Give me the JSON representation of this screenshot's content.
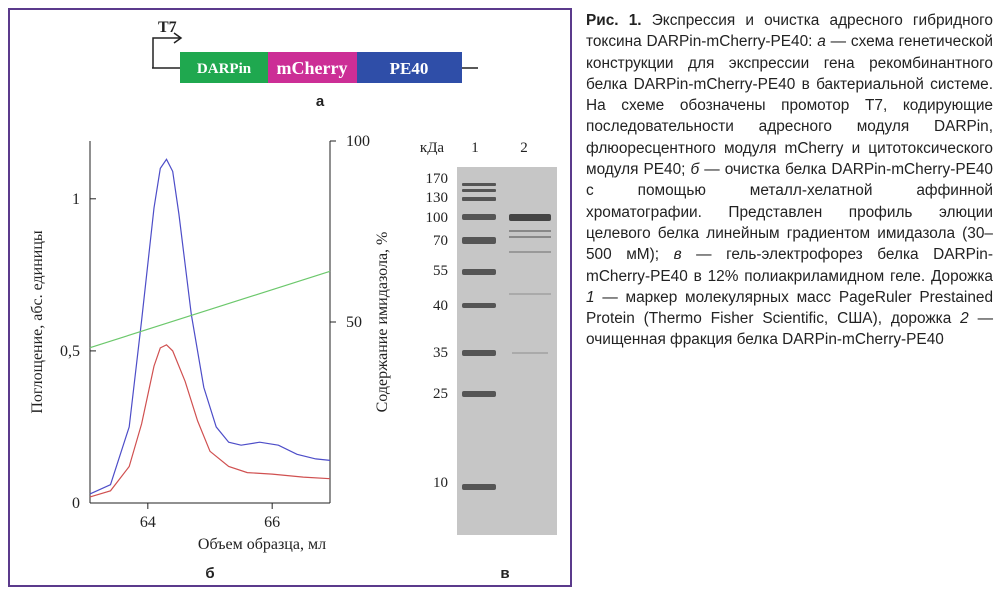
{
  "diagram": {
    "promoter": "T7",
    "modules": [
      "DARPin",
      "mCherry",
      "PE40"
    ],
    "label": "а"
  },
  "chart_data": {
    "type": "line",
    "label": "б",
    "xlabel": "Объем образца, мл",
    "ylabel": "Поглощение, абс. единицы",
    "y2label": "Содержание имидазола, %",
    "xlim": [
      63.07,
      66.93
    ],
    "xticks": [
      64,
      66
    ],
    "ylim": [
      0,
      1.19
    ],
    "yticks": [
      0,
      {
        "value": 0.5,
        "label": "0,5"
      },
      1
    ],
    "y2lim": [
      0,
      100
    ],
    "y2ticks": [
      50,
      100
    ],
    "series": [
      {
        "color": "#4d4dc8",
        "x": [
          63.07,
          63.4,
          63.7,
          63.9,
          64.1,
          64.2,
          64.3,
          64.4,
          64.5,
          64.7,
          64.9,
          65.1,
          65.3,
          65.5,
          65.8,
          66.1,
          66.4,
          66.7,
          66.93
        ],
        "values": [
          0.03,
          0.06,
          0.25,
          0.6,
          0.97,
          1.1,
          1.13,
          1.09,
          0.95,
          0.62,
          0.38,
          0.25,
          0.2,
          0.19,
          0.2,
          0.19,
          0.16,
          0.145,
          0.14
        ]
      },
      {
        "color": "#d05050",
        "x": [
          63.07,
          63.4,
          63.7,
          63.9,
          64.1,
          64.2,
          64.3,
          64.4,
          64.6,
          64.8,
          65.0,
          65.3,
          65.6,
          66.0,
          66.5,
          66.93
        ],
        "values": [
          0.02,
          0.04,
          0.12,
          0.26,
          0.45,
          0.51,
          0.52,
          0.5,
          0.4,
          0.27,
          0.17,
          0.12,
          0.1,
          0.095,
          0.085,
          0.08
        ]
      },
      {
        "color": "#6cc86c",
        "axis": "y2",
        "x": [
          63.07,
          66.93
        ],
        "values": [
          42.9,
          64
        ]
      }
    ]
  },
  "gel": {
    "unit": "кДа",
    "lanes": [
      "1",
      "2"
    ],
    "markers": [
      "170",
      "130",
      "100",
      "70",
      "55",
      "40",
      "35",
      "25",
      "10"
    ],
    "label": "в"
  },
  "caption": {
    "label": "Рис. 1.",
    "parts": [
      " Экспрессия и очистка адресного гибридного токсина DARPin-mCherry-PE40: ",
      "а",
      " — схема генетической конструкции для экспрессии гена рекомбинантного белка DARPin-mCherry-PE40 в бактериальной системе. На схеме обозначены промотор T7, кодирующие последовательности адресного модуля DARPin, флюоресцентного модуля mCherry и цитотоксического модуля PE40; ",
      "б",
      " — очистка белка DARPin-mCherry-PE40 с помощью металл-хелатной аффинной хроматографии. Представлен профиль элюции целевого белка линейным градиентом имидазола (30–500 мМ); ",
      "в",
      " — гель-электрофорез белка DARPin-mCherry-PE40 в 12% полиакриламидном геле. Дорожка ",
      "1",
      " — маркер молекулярных масс PageRuler Prestained Protein (Thermo Fisher Scientific, США), дорожка ",
      "2",
      " — очищенная фракция белка DARPin-mCherry-PE40"
    ]
  }
}
